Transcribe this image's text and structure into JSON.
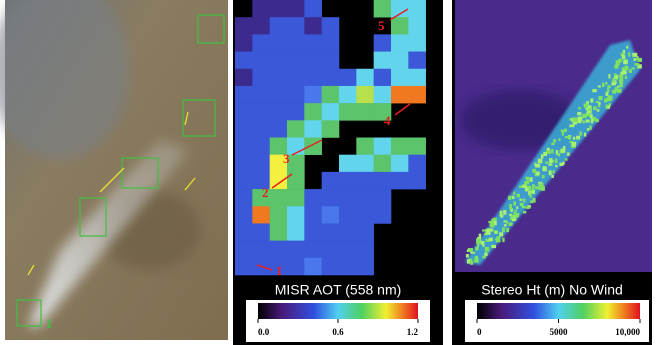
{
  "panels": [
    {
      "labels": [
        "1"
      ]
    },
    {
      "title": "MISR AOT (558 nm)",
      "ticks": [
        {
          "value": 0,
          "label": "0.0"
        },
        0.6,
        1.2
      ],
      "labels": [
        "1",
        "2",
        "3",
        "4",
        "5"
      ]
    },
    {
      "title": "Stereo Ht (m) No Wind",
      "ticks": [
        0,
        5000,
        {
          "value": 10000,
          "label": "10,000"
        }
      ]
    }
  ]
}
